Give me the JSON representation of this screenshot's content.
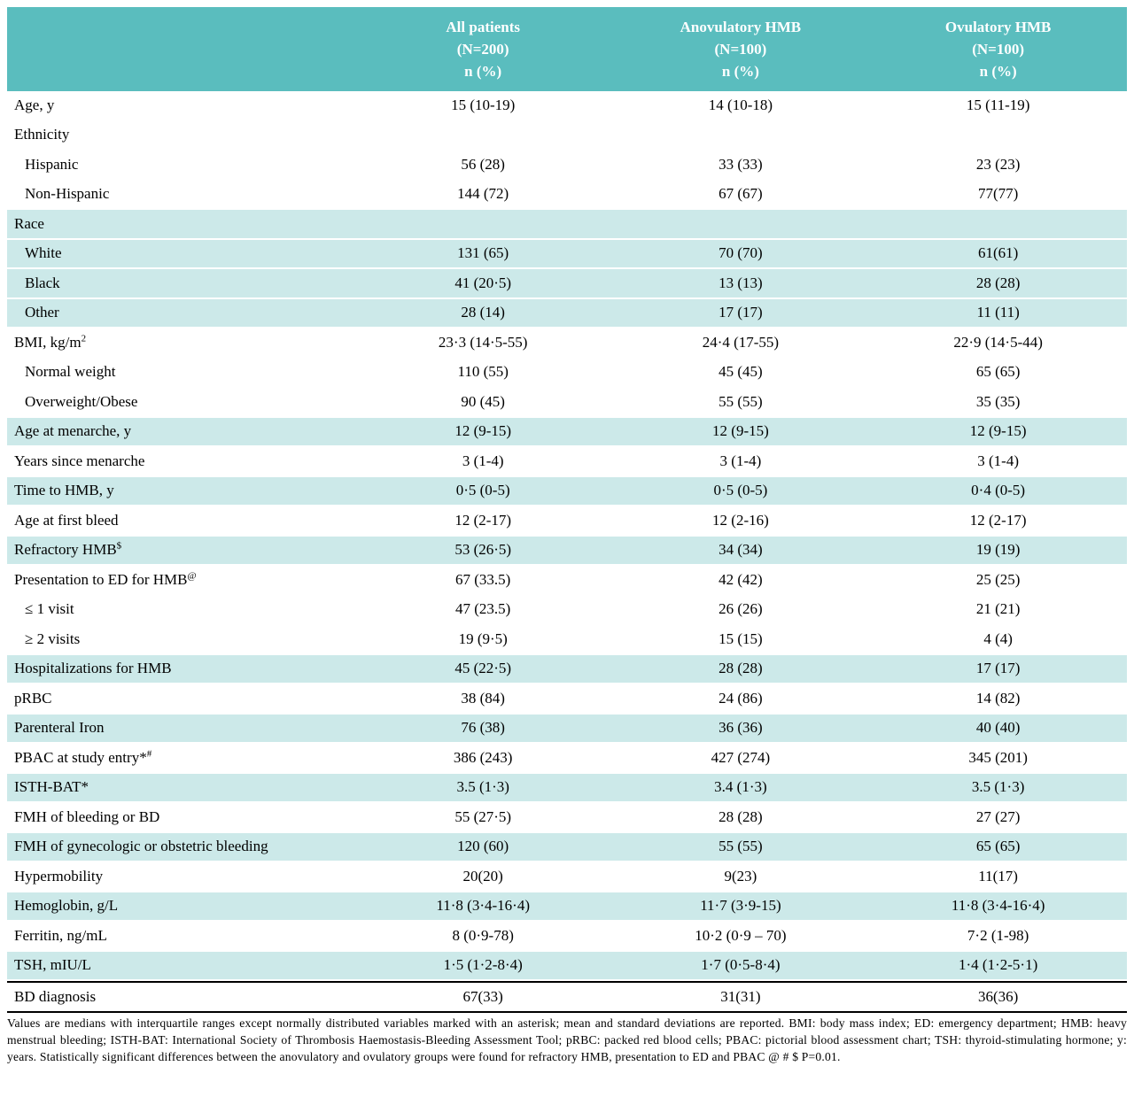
{
  "table": {
    "columns": [
      {
        "lines": [
          "All patients",
          "(N=200)",
          "n (%)"
        ]
      },
      {
        "lines": [
          "Anovulatory HMB",
          "(N=100)",
          "n (%)"
        ]
      },
      {
        "lines": [
          "Ovulatory HMB",
          "(N=100)",
          "n (%)"
        ]
      }
    ],
    "rows": [
      {
        "label": "Age, y",
        "sup": "",
        "indent": false,
        "shaded": false,
        "values": [
          "15 (10-19)",
          "14 (10-18)",
          "15 (11-19)"
        ]
      },
      {
        "label": "Ethnicity",
        "sup": "",
        "indent": false,
        "shaded": false,
        "values": [
          "",
          "",
          ""
        ]
      },
      {
        "label": "Hispanic",
        "sup": "",
        "indent": true,
        "shaded": false,
        "values": [
          "56 (28)",
          "33 (33)",
          "23 (23)"
        ]
      },
      {
        "label": "Non-Hispanic",
        "sup": "",
        "indent": true,
        "shaded": false,
        "values": [
          "144 (72)",
          "67 (67)",
          "77(77)"
        ]
      },
      {
        "label": "Race",
        "sup": "",
        "indent": false,
        "shaded": true,
        "values": [
          "",
          "",
          ""
        ]
      },
      {
        "label": "White",
        "sup": "",
        "indent": true,
        "shaded": true,
        "values": [
          "131 (65)",
          "70 (70)",
          "61(61)"
        ]
      },
      {
        "label": "Black",
        "sup": "",
        "indent": true,
        "shaded": true,
        "values": [
          "41 (20·5)",
          "13 (13)",
          "28 (28)"
        ]
      },
      {
        "label": "Other",
        "sup": "",
        "indent": true,
        "shaded": true,
        "values": [
          "28 (14)",
          "17 (17)",
          "11 (11)"
        ]
      },
      {
        "label": "BMI, kg/m",
        "sup": "2",
        "indent": false,
        "shaded": false,
        "values": [
          "23·3 (14·5-55)",
          "24·4 (17-55)",
          "22·9 (14·5-44)"
        ]
      },
      {
        "label": "Normal weight",
        "sup": "",
        "indent": true,
        "shaded": false,
        "values": [
          "110 (55)",
          "45 (45)",
          "65 (65)"
        ]
      },
      {
        "label": "Overweight/Obese",
        "sup": "",
        "indent": true,
        "shaded": false,
        "values": [
          "90 (45)",
          "55 (55)",
          "35 (35)"
        ]
      },
      {
        "label": "Age at menarche, y",
        "sup": "",
        "indent": false,
        "shaded": true,
        "values": [
          "12 (9-15)",
          "12 (9-15)",
          "12 (9-15)"
        ]
      },
      {
        "label": "Years since menarche",
        "sup": "",
        "indent": false,
        "shaded": false,
        "values": [
          "3 (1-4)",
          "3 (1-4)",
          "3 (1-4)"
        ]
      },
      {
        "label": "Time to HMB, y",
        "sup": "",
        "indent": false,
        "shaded": true,
        "values": [
          "0·5 (0-5)",
          "0·5 (0-5)",
          "0·4 (0-5)"
        ]
      },
      {
        "label": "Age at first bleed",
        "sup": "",
        "indent": false,
        "shaded": false,
        "values": [
          "12 (2-17)",
          "12 (2-16)",
          "12 (2-17)"
        ]
      },
      {
        "label": "Refractory HMB",
        "sup": "$",
        "indent": false,
        "shaded": true,
        "values": [
          "53 (26·5)",
          "34 (34)",
          "19 (19)"
        ]
      },
      {
        "label": "Presentation to ED for HMB",
        "sup": "@",
        "indent": false,
        "shaded": false,
        "values": [
          "67 (33.5)",
          "42 (42)",
          "25 (25)"
        ]
      },
      {
        "label": "≤ 1 visit",
        "sup": "",
        "indent": true,
        "shaded": false,
        "values": [
          "47 (23.5)",
          "26 (26)",
          "21 (21)"
        ]
      },
      {
        "label": "≥ 2 visits",
        "sup": "",
        "indent": true,
        "shaded": false,
        "values": [
          "19 (9·5)",
          "15 (15)",
          "4 (4)"
        ]
      },
      {
        "label": "Hospitalizations for HMB",
        "sup": "",
        "indent": false,
        "shaded": true,
        "values": [
          "45 (22·5)",
          "28 (28)",
          "17 (17)"
        ]
      },
      {
        "label": "pRBC",
        "sup": "",
        "indent": false,
        "shaded": false,
        "values": [
          "38 (84)",
          "24 (86)",
          "14 (82)"
        ]
      },
      {
        "label": "Parenteral Iron",
        "sup": "",
        "indent": false,
        "shaded": true,
        "values": [
          "76 (38)",
          "36 (36)",
          "40 (40)"
        ]
      },
      {
        "label": "PBAC at study entry*",
        "sup": "#",
        "indent": false,
        "shaded": false,
        "values": [
          "386 (243)",
          "427 (274)",
          "345 (201)"
        ]
      },
      {
        "label": "ISTH-BAT*",
        "sup": "",
        "indent": false,
        "shaded": true,
        "values": [
          "3.5 (1·3)",
          "3.4 (1·3)",
          "3.5 (1·3)"
        ]
      },
      {
        "label": "FMH of bleeding or BD",
        "sup": "",
        "indent": false,
        "shaded": false,
        "values": [
          "55 (27·5)",
          "28 (28)",
          "27 (27)"
        ]
      },
      {
        "label": "FMH of gynecologic or obstetric bleeding",
        "sup": "",
        "indent": false,
        "shaded": true,
        "values": [
          "120 (60)",
          "55 (55)",
          "65 (65)"
        ]
      },
      {
        "label": "Hypermobility",
        "sup": "",
        "indent": false,
        "shaded": false,
        "values": [
          "20(20)",
          "9(23)",
          "11(17)"
        ]
      },
      {
        "label": "Hemoglobin, g/L",
        "sup": "",
        "indent": false,
        "shaded": true,
        "values": [
          "11·8 (3·4-16·4)",
          "11·7 (3·9-15)",
          "11·8 (3·4-16·4)"
        ]
      },
      {
        "label": "Ferritin, ng/mL",
        "sup": "",
        "indent": false,
        "shaded": false,
        "values": [
          "8 (0·9-78)",
          "10·2 (0·9 – 70)",
          "7·2 (1-98)"
        ]
      },
      {
        "label": "TSH, mIU/L",
        "sup": "",
        "indent": false,
        "shaded": true,
        "values": [
          "1·5 (1·2-8·4)",
          "1·7 (0·5-8·4)",
          "1·4 (1·2-5·1)"
        ]
      },
      {
        "label": "BD diagnosis",
        "sup": "",
        "indent": false,
        "shaded": false,
        "values": [
          "67(33)",
          "31(31)",
          "36(36)"
        ]
      }
    ]
  },
  "footnote": "Values are medians with interquartile ranges except normally distributed variables marked with an asterisk; mean and standard deviations are reported. BMI: body mass index; ED: emergency department; HMB: heavy menstrual bleeding; ISTH-BAT: International Society of Thrombosis Haemostasis-Bleeding Assessment Tool; pRBC: packed red blood cells; PBAC: pictorial blood assessment chart; TSH: thyroid-stimulating hormone; y: years. Statistically significant differences between the anovulatory and ovulatory groups were found for refractory HMB, presentation to ED and PBAC @ # $ P=0.01."
}
